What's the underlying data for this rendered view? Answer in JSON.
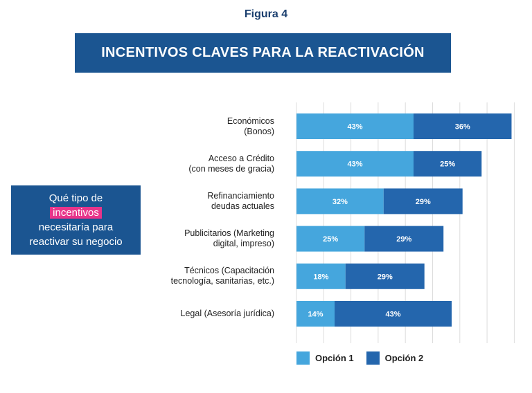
{
  "figure_label": "Figura 4",
  "banner_title": "INCENTIVOS CLAVES PARA LA REACTIVACIÓN",
  "question": {
    "line1": "Qué tipo de",
    "highlight": "incentivos",
    "line3": "necesitaría para",
    "line4": "reactivar su negocio"
  },
  "colors": {
    "option1": "#45a6dd",
    "option2": "#2466ad",
    "banner": "#1b5591",
    "highlight": "#e8348a",
    "grid": "#dddddd"
  },
  "chart_data": {
    "type": "bar",
    "orientation": "horizontal",
    "stacked": true,
    "categories": [
      "Económicos\n(Bonos)",
      "Acceso a Crédito\n(con meses de gracia)",
      "Refinanciamiento\ndeudas actuales",
      "Publicitarios (Marketing\ndigital, impreso)",
      "Técnicos (Capacitación\ntecnología, sanitarias, etc.)",
      "Legal (Asesoría jurídica)"
    ],
    "series": [
      {
        "name": "Opción 1",
        "values": [
          43,
          43,
          32,
          25,
          18,
          14
        ],
        "labels": [
          "43%",
          "43%",
          "32%",
          "25%",
          "18%",
          "14%"
        ]
      },
      {
        "name": "Opción 2",
        "values": [
          36,
          25,
          29,
          29,
          29,
          43
        ],
        "labels": [
          "36%",
          "25%",
          "29%",
          "29%",
          "29%",
          "43%"
        ]
      }
    ],
    "xlim": [
      0,
      80
    ],
    "grid": true,
    "legend": "bottom"
  }
}
